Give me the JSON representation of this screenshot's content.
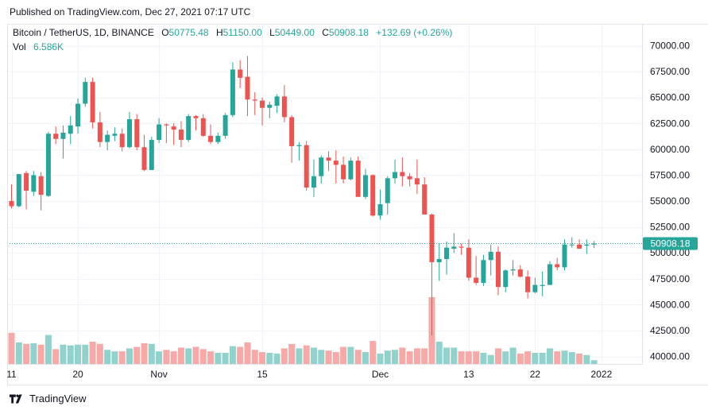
{
  "published": "Published on TradingView.com, Dec 27, 2021 07:17 UTC",
  "branding": {
    "name": "TradingView"
  },
  "legend": {
    "symbol": "Bitcoin / TetherUS, 1D, BINANCE",
    "o_label": "O",
    "o_value": "50775.48",
    "h_label": "H",
    "h_value": "51150.00",
    "l_label": "L",
    "l_value": "50449.00",
    "c_label": "C",
    "c_value": "50908.18",
    "change": "+132.69 (+0.26%)",
    "vol_label": "Vol",
    "vol_value": "6.586K"
  },
  "colors": {
    "up": "#26a69a",
    "down": "#ef5350",
    "vol_up": "#92d2cc",
    "vol_down": "#f7a9a7",
    "price_line": "#26a69a",
    "price_badge": "#26a69a"
  },
  "chart_data": {
    "type": "candlestick",
    "title": "Bitcoin / TetherUS, 1D, BINANCE",
    "ylim": [
      39000,
      71000
    ],
    "y_ticks": [
      "70000.00",
      "67500.00",
      "65000.00",
      "62500.00",
      "60000.00",
      "57500.00",
      "55000.00",
      "52500.00",
      "50000.00",
      "47500.00",
      "45000.00",
      "42500.00",
      "40000.00"
    ],
    "x_ticks": [
      {
        "index": 0,
        "label": "11"
      },
      {
        "index": 9,
        "label": "20"
      },
      {
        "index": 20,
        "label": "Nov"
      },
      {
        "index": 34,
        "label": "15"
      },
      {
        "index": 50,
        "label": "Dec"
      },
      {
        "index": 62,
        "label": "13"
      },
      {
        "index": 71,
        "label": "22"
      },
      {
        "index": 80,
        "label": "2022"
      }
    ],
    "last_price": "50908.18",
    "volume_scale": 3.3,
    "candles": [
      [
        55000,
        54500,
        56600,
        54300,
        2.1
      ],
      [
        54500,
        57600,
        57600,
        54400,
        1.45
      ],
      [
        57700,
        56000,
        57900,
        54200,
        1.35
      ],
      [
        55900,
        57500,
        57900,
        55500,
        1.4
      ],
      [
        57400,
        55600,
        57800,
        54100,
        1.3
      ],
      [
        55500,
        61500,
        61700,
        55400,
        1.95
      ],
      [
        61500,
        61000,
        62200,
        60500,
        1.0
      ],
      [
        61000,
        61600,
        62300,
        59100,
        1.3
      ],
      [
        61500,
        62300,
        63200,
        60500,
        1.25
      ],
      [
        62200,
        64400,
        64900,
        61500,
        1.3
      ],
      [
        64400,
        66500,
        66900,
        64100,
        1.3
      ],
      [
        66500,
        62600,
        66900,
        62000,
        1.5
      ],
      [
        62600,
        60700,
        63600,
        60200,
        1.35
      ],
      [
        60700,
        61400,
        61800,
        59900,
        0.95
      ],
      [
        61300,
        61500,
        62100,
        60800,
        0.85
      ],
      [
        61500,
        60200,
        62000,
        59800,
        0.85
      ],
      [
        60200,
        62900,
        63600,
        60100,
        1.05
      ],
      [
        62900,
        60200,
        63400,
        59900,
        1.15
      ],
      [
        60200,
        58000,
        61400,
        57900,
        1.4
      ],
      [
        58000,
        60900,
        61200,
        58000,
        1.35
      ],
      [
        60900,
        62400,
        63000,
        60600,
        0.85
      ],
      [
        62400,
        62300,
        62500,
        60600,
        0.95
      ],
      [
        62200,
        61900,
        62500,
        60400,
        0.85
      ],
      [
        61900,
        60900,
        62700,
        60200,
        1.1
      ],
      [
        60900,
        63200,
        63400,
        60700,
        1.05
      ],
      [
        63200,
        63000,
        63300,
        61800,
        1.15
      ],
      [
        63000,
        61300,
        63400,
        61200,
        1.0
      ],
      [
        61300,
        60700,
        62400,
        60500,
        0.85
      ],
      [
        60700,
        61300,
        61600,
        60500,
        0.75
      ],
      [
        61300,
        63300,
        63500,
        61000,
        0.75
      ],
      [
        63300,
        67700,
        68400,
        63100,
        1.2
      ],
      [
        67700,
        66900,
        68600,
        65900,
        1.15
      ],
      [
        67000,
        64800,
        69000,
        63200,
        1.45
      ],
      [
        64800,
        64700,
        65500,
        63300,
        0.95
      ],
      [
        64700,
        64000,
        65000,
        62300,
        0.8
      ],
      [
        64000,
        64300,
        64600,
        63000,
        0.75
      ],
      [
        64200,
        65100,
        65300,
        63500,
        0.7
      ],
      [
        65100,
        63100,
        66200,
        62600,
        1.05
      ],
      [
        63100,
        60300,
        63300,
        58700,
        1.35
      ],
      [
        60300,
        60400,
        60700,
        58900,
        1.05
      ],
      [
        60400,
        56300,
        60800,
        56000,
        1.25
      ],
      [
        56300,
        57400,
        59000,
        55400,
        1.1
      ],
      [
        57400,
        59200,
        59400,
        56700,
        0.95
      ],
      [
        59200,
        58900,
        59800,
        57900,
        0.9
      ],
      [
        58900,
        58500,
        59900,
        56700,
        0.8
      ],
      [
        58500,
        57100,
        59300,
        56700,
        1.15
      ],
      [
        57100,
        58900,
        59200,
        57000,
        1.15
      ],
      [
        58900,
        55400,
        59300,
        55600,
        0.95
      ],
      [
        55400,
        57500,
        58100,
        55200,
        0.8
      ],
      [
        57500,
        53600,
        57600,
        53500,
        1.55
      ],
      [
        53600,
        54700,
        56100,
        53200,
        0.7
      ],
      [
        54800,
        57200,
        57400,
        53700,
        0.9
      ],
      [
        57200,
        57800,
        59000,
        56700,
        0.95
      ],
      [
        57800,
        57400,
        59200,
        56400,
        1.1
      ],
      [
        57400,
        57100,
        57700,
        56400,
        0.85
      ],
      [
        57200,
        56600,
        59000,
        55700,
        1.05
      ],
      [
        56600,
        53700,
        57300,
        53700,
        1.05
      ],
      [
        53700,
        49100,
        53800,
        42000,
        4.5
      ],
      [
        49100,
        49400,
        50900,
        47300,
        1.5
      ],
      [
        49400,
        50500,
        51100,
        47900,
        1.1
      ],
      [
        50400,
        50600,
        51900,
        50000,
        1.1
      ],
      [
        50600,
        50500,
        50900,
        49800,
        0.85
      ],
      [
        50500,
        47600,
        51300,
        47300,
        0.85
      ],
      [
        47600,
        47100,
        49700,
        46900,
        0.85
      ],
      [
        47100,
        49300,
        49800,
        46800,
        0.75
      ],
      [
        49300,
        50100,
        50800,
        47800,
        0.6
      ],
      [
        50100,
        46700,
        50600,
        45900,
        1.05
      ],
      [
        46700,
        48300,
        48400,
        46200,
        0.85
      ],
      [
        48300,
        48400,
        49300,
        47800,
        1.1
      ],
      [
        48400,
        47700,
        48800,
        47600,
        0.7
      ],
      [
        47700,
        46200,
        48300,
        45600,
        0.85
      ],
      [
        46200,
        46900,
        47600,
        46100,
        0.75
      ],
      [
        46800,
        46900,
        48200,
        45800,
        0.75
      ],
      [
        46900,
        48900,
        49200,
        46900,
        1.05
      ],
      [
        48900,
        48600,
        49500,
        48300,
        0.85
      ],
      [
        48600,
        50800,
        51300,
        48300,
        0.9
      ],
      [
        50800,
        50800,
        51500,
        50500,
        0.8
      ],
      [
        50800,
        50400,
        51300,
        50500,
        0.7
      ],
      [
        50700,
        50800,
        51300,
        49900,
        0.6
      ],
      [
        50800,
        50900,
        51150,
        50450,
        0.25
      ]
    ]
  }
}
